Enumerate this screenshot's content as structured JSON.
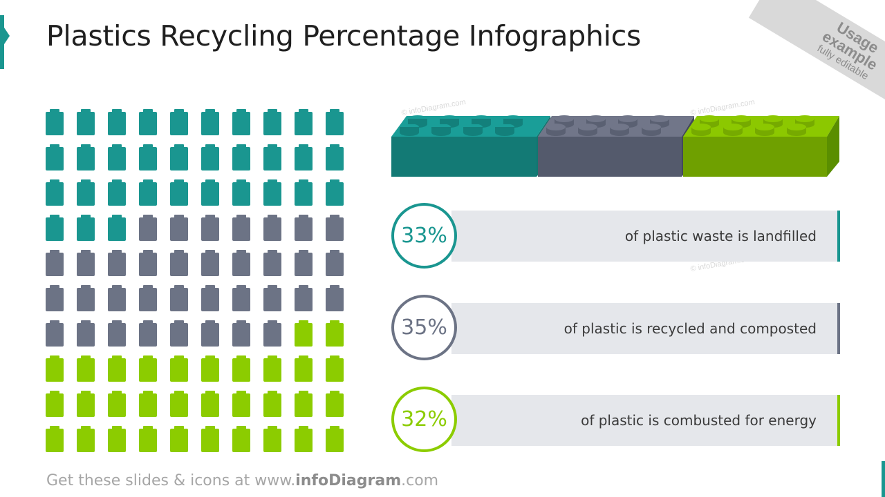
{
  "title": "Plastics Recycling Percentage Infographics",
  "ribbon": {
    "line1": "Usage",
    "line2": "example",
    "line3": "fully editable"
  },
  "colors": {
    "teal": "#1a9690",
    "gray": "#6c7385",
    "green": "#8ccc00"
  },
  "icon_grid": {
    "icon": "battery-icon",
    "rows": 10,
    "cols": 10,
    "teal_count": 33,
    "gray_count": 35,
    "green_count": 32
  },
  "stats": [
    {
      "percent": "33%",
      "text": "of plastic waste is landfilled",
      "color": "#1a9690"
    },
    {
      "percent": "35%",
      "text": "of plastic is recycled and composted",
      "color": "#6c7385"
    },
    {
      "percent": "32%",
      "text": "of plastic is combusted for energy",
      "color": "#8ccc00"
    }
  ],
  "watermark": "© infoDiagram.com",
  "footer": {
    "prefix": "Get these slides & icons at www.",
    "brand": "infoDiagram",
    "suffix": ".com"
  }
}
